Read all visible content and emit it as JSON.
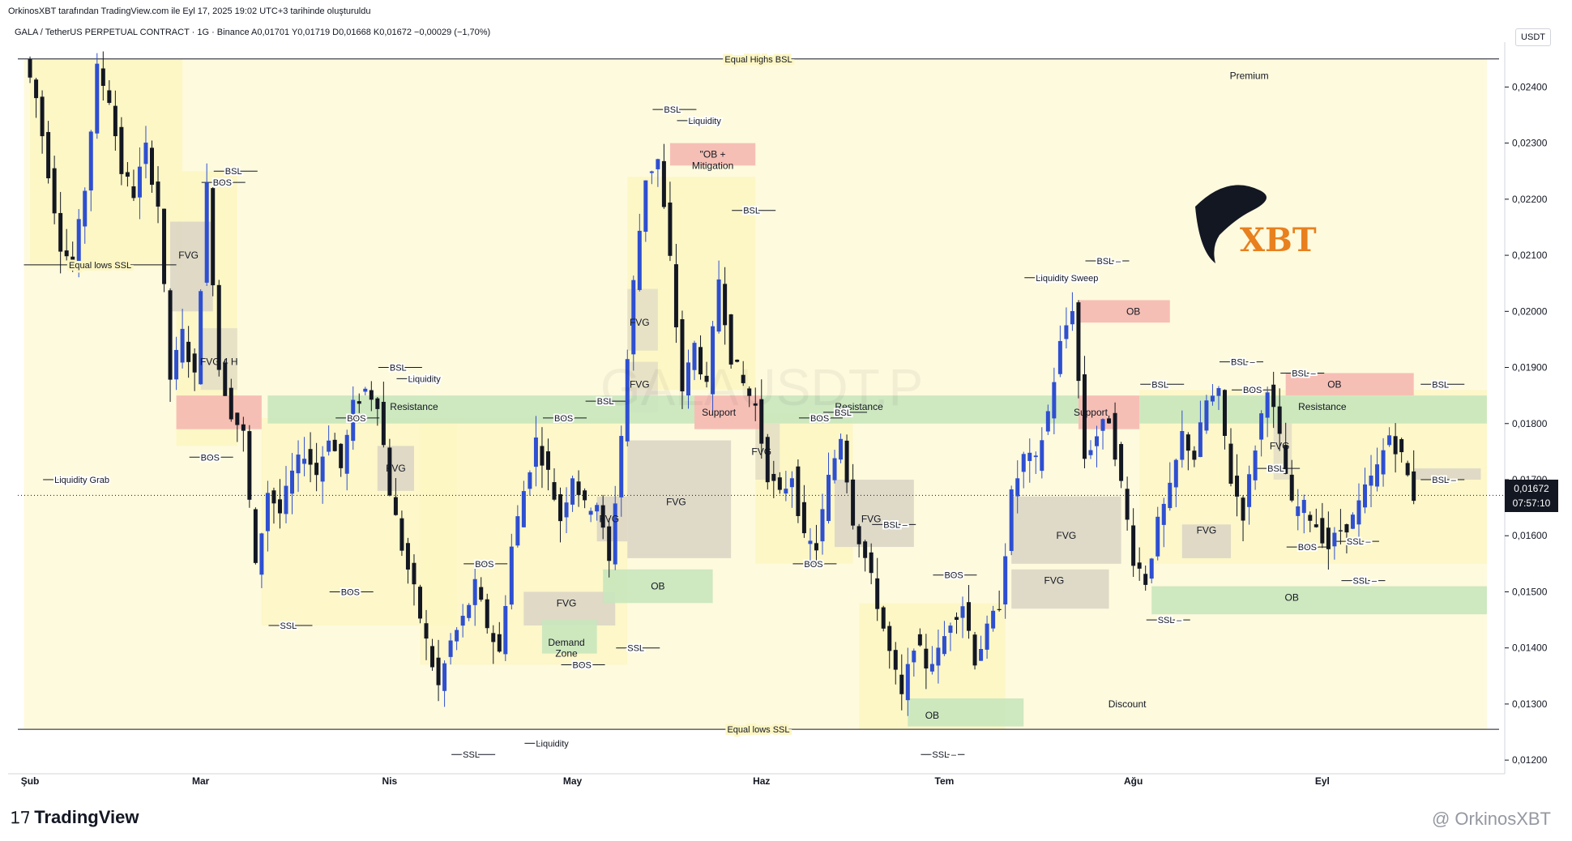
{
  "header": {
    "author_line": "OrkinosXBT tarafından TradingView.com ile Eyl 17, 2025 19:02 UTC+3 tarihinde oluşturuldu",
    "symbol_line": "GALA / TetherUS PERPETUAL CONTRACT · 1G · Binance  A0,01701  Y0,01719  D0,01668  K0,01672  −0,00029 (−1,70%)",
    "currency": "USDT",
    "watermark": "GALAUSDT.P"
  },
  "footer": {
    "brand": "TradingView",
    "author_watermark": "@ OrkinosXBT"
  },
  "logo": {
    "text": "XBT",
    "color": "#e8801e"
  },
  "price_tag": {
    "price": "0,01672",
    "countdown": "07:57:10"
  },
  "colors": {
    "up": "#2e4fd1",
    "down": "#131722",
    "yellow": "#fdf6c3",
    "green": "#c9e6bd",
    "red": "#f5b8b0",
    "gray": "#d9d4c4"
  },
  "chart_data": {
    "type": "candlestick",
    "y_axis": {
      "range": [
        0.0118,
        0.0248
      ],
      "ticks": [
        "0,01200",
        "0,01300",
        "0,01400",
        "0,01500",
        "0,01600",
        "0,01700",
        "0,01800",
        "0,01900",
        "0,02000",
        "0,02100",
        "0,02200",
        "0,02300",
        "0,02400"
      ]
    },
    "x_axis": {
      "range": [
        "2025-01-30",
        "2025-09-30"
      ],
      "labels": [
        {
          "date": "2025-02-01",
          "text": "Şub"
        },
        {
          "date": "2025-03-01",
          "text": "Mar"
        },
        {
          "date": "2025-04-01",
          "text": "Nis"
        },
        {
          "date": "2025-05-01",
          "text": "May"
        },
        {
          "date": "2025-06-01",
          "text": "Haz"
        },
        {
          "date": "2025-07-01",
          "text": "Tem"
        },
        {
          "date": "2025-08-01",
          "text": "Ağu"
        },
        {
          "date": "2025-09-01",
          "text": "Eyl"
        }
      ]
    },
    "current_price": 0.01672,
    "price_path": [
      [
        "2025-02-01",
        0.0245
      ],
      [
        "2025-02-03",
        0.0238
      ],
      [
        "2025-02-05",
        0.0225
      ],
      [
        "2025-02-07",
        0.0212
      ],
      [
        "2025-02-09",
        0.0208
      ],
      [
        "2025-02-11",
        0.0222
      ],
      [
        "2025-02-13",
        0.0243
      ],
      [
        "2025-02-15",
        0.0238
      ],
      [
        "2025-02-17",
        0.0225
      ],
      [
        "2025-02-19",
        0.0221
      ],
      [
        "2025-02-21",
        0.0229
      ],
      [
        "2025-02-23",
        0.0219
      ],
      [
        "2025-02-25",
        0.0188
      ],
      [
        "2025-02-27",
        0.0196
      ],
      [
        "2025-03-01",
        0.0188
      ],
      [
        "2025-03-03",
        0.0222
      ],
      [
        "2025-03-05",
        0.019
      ],
      [
        "2025-03-07",
        0.0182
      ],
      [
        "2025-03-09",
        0.0178
      ],
      [
        "2025-03-11",
        0.0154
      ],
      [
        "2025-03-13",
        0.0168
      ],
      [
        "2025-03-15",
        0.0164
      ],
      [
        "2025-03-17",
        0.0171
      ],
      [
        "2025-03-19",
        0.0175
      ],
      [
        "2025-03-21",
        0.0171
      ],
      [
        "2025-03-23",
        0.0178
      ],
      [
        "2025-03-25",
        0.0172
      ],
      [
        "2025-03-27",
        0.0183
      ],
      [
        "2025-03-29",
        0.0186
      ],
      [
        "2025-03-31",
        0.0184
      ],
      [
        "2025-04-02",
        0.0168
      ],
      [
        "2025-04-04",
        0.0158
      ],
      [
        "2025-04-06",
        0.015
      ],
      [
        "2025-04-08",
        0.0141
      ],
      [
        "2025-04-10",
        0.0133
      ],
      [
        "2025-04-12",
        0.0141
      ],
      [
        "2025-04-14",
        0.0145
      ],
      [
        "2025-04-16",
        0.0151
      ],
      [
        "2025-04-18",
        0.0144
      ],
      [
        "2025-04-20",
        0.0139
      ],
      [
        "2025-04-22",
        0.0158
      ],
      [
        "2025-04-24",
        0.0168
      ],
      [
        "2025-04-26",
        0.0177
      ],
      [
        "2025-04-28",
        0.0171
      ],
      [
        "2025-04-30",
        0.0163
      ],
      [
        "2025-05-02",
        0.0171
      ],
      [
        "2025-05-04",
        0.0165
      ],
      [
        "2025-05-06",
        0.0166
      ],
      [
        "2025-05-08",
        0.0155
      ],
      [
        "2025-05-10",
        0.0178
      ],
      [
        "2025-05-12",
        0.0205
      ],
      [
        "2025-05-14",
        0.0224
      ],
      [
        "2025-05-16",
        0.0227
      ],
      [
        "2025-05-18",
        0.0209
      ],
      [
        "2025-05-20",
        0.0186
      ],
      [
        "2025-05-22",
        0.0194
      ],
      [
        "2025-05-24",
        0.0186
      ],
      [
        "2025-05-26",
        0.0206
      ],
      [
        "2025-05-28",
        0.0192
      ],
      [
        "2025-05-30",
        0.0187
      ],
      [
        "2025-06-01",
        0.0183
      ],
      [
        "2025-06-03",
        0.0171
      ],
      [
        "2025-06-05",
        0.0167
      ],
      [
        "2025-06-07",
        0.0171
      ],
      [
        "2025-06-09",
        0.0159
      ],
      [
        "2025-06-11",
        0.0158
      ],
      [
        "2025-06-13",
        0.017
      ],
      [
        "2025-06-15",
        0.0178
      ],
      [
        "2025-06-17",
        0.0163
      ],
      [
        "2025-06-19",
        0.0156
      ],
      [
        "2025-06-21",
        0.0148
      ],
      [
        "2025-06-23",
        0.0139
      ],
      [
        "2025-06-25",
        0.0131
      ],
      [
        "2025-06-27",
        0.0141
      ],
      [
        "2025-06-29",
        0.0137
      ],
      [
        "2025-07-01",
        0.0139
      ],
      [
        "2025-07-03",
        0.0145
      ],
      [
        "2025-07-05",
        0.0148
      ],
      [
        "2025-07-07",
        0.0138
      ],
      [
        "2025-07-09",
        0.0143
      ],
      [
        "2025-07-11",
        0.0148
      ],
      [
        "2025-07-13",
        0.0167
      ],
      [
        "2025-07-15",
        0.0174
      ],
      [
        "2025-07-17",
        0.0173
      ],
      [
        "2025-07-19",
        0.0182
      ],
      [
        "2025-07-21",
        0.0194
      ],
      [
        "2025-07-23",
        0.0201
      ],
      [
        "2025-07-25",
        0.0174
      ],
      [
        "2025-07-27",
        0.0178
      ],
      [
        "2025-07-29",
        0.0181
      ],
      [
        "2025-07-31",
        0.0169
      ],
      [
        "2025-08-02",
        0.0156
      ],
      [
        "2025-08-04",
        0.0152
      ],
      [
        "2025-08-06",
        0.0162
      ],
      [
        "2025-08-08",
        0.0168
      ],
      [
        "2025-08-10",
        0.0178
      ],
      [
        "2025-08-12",
        0.0174
      ],
      [
        "2025-08-14",
        0.0184
      ],
      [
        "2025-08-16",
        0.0185
      ],
      [
        "2025-08-18",
        0.017
      ],
      [
        "2025-08-20",
        0.0164
      ],
      [
        "2025-08-22",
        0.0176
      ],
      [
        "2025-08-24",
        0.0187
      ],
      [
        "2025-08-26",
        0.0177
      ],
      [
        "2025-08-28",
        0.0165
      ],
      [
        "2025-08-30",
        0.0165
      ],
      [
        "2025-09-01",
        0.0162
      ],
      [
        "2025-09-03",
        0.0158
      ],
      [
        "2025-09-05",
        0.0161
      ],
      [
        "2025-09-07",
        0.0163
      ],
      [
        "2025-09-09",
        0.0168
      ],
      [
        "2025-09-11",
        0.0172
      ],
      [
        "2025-09-13",
        0.0178
      ],
      [
        "2025-09-15",
        0.0174
      ],
      [
        "2025-09-17",
        0.0167
      ]
    ],
    "levels": [
      {
        "text": "Equal Highs BSL",
        "price": 0.0245
      },
      {
        "text": "Equal lows SSL",
        "price": 0.01255
      },
      {
        "text": "Equal lows SSL",
        "price": 0.02083
      }
    ],
    "zones": [
      {
        "text": "Premium",
        "price": 0.0242
      },
      {
        "text": "Discount",
        "price": 0.013
      },
      {
        "text": "Resistance",
        "price": 0.0183
      },
      {
        "text": "Resistance",
        "price": 0.0183
      },
      {
        "text": "Resistance",
        "price": 0.0183
      },
      {
        "text": "Support",
        "price": 0.0182
      },
      {
        "text": "Support",
        "price": 0.0182
      },
      {
        "text": "\"OB +",
        "price": 0.0228
      },
      {
        "text": "Mitigation",
        "price": 0.0226
      },
      {
        "text": "OB",
        "price": 0.02
      },
      {
        "text": "OB",
        "price": 0.0187
      },
      {
        "text": "OB",
        "price": 0.0151
      },
      {
        "text": "OB",
        "price": 0.0149
      },
      {
        "text": "OB",
        "price": 0.0128
      },
      {
        "text": "Demand",
        "price": 0.0141
      },
      {
        "text": "Zone",
        "price": 0.0139
      },
      {
        "text": "FVG",
        "price": 0.021
      },
      {
        "text": "FVG 4 H",
        "price": 0.0191
      },
      {
        "text": "FVG",
        "price": 0.0172
      },
      {
        "text": "FVG",
        "price": 0.0148
      },
      {
        "text": "FVG",
        "price": 0.0163
      },
      {
        "text": "FVG",
        "price": 0.0166
      },
      {
        "text": "FVG",
        "price": 0.0198
      },
      {
        "text": "FVG",
        "price": 0.0187
      },
      {
        "text": "FVG",
        "price": 0.0175
      },
      {
        "text": "FVG",
        "price": 0.0163
      },
      {
        "text": "FVG",
        "price": 0.016
      },
      {
        "text": "FVG",
        "price": 0.0152
      },
      {
        "text": "FVG",
        "price": 0.0161
      },
      {
        "text": "FVG",
        "price": 0.0176
      }
    ],
    "annotations": [
      {
        "text": "BSL",
        "price": 0.0225
      },
      {
        "text": "BOS",
        "price": 0.0223
      },
      {
        "text": "BOS",
        "price": 0.0174
      },
      {
        "text": "Liquidity Grab",
        "price": 0.017
      },
      {
        "text": "BSL",
        "price": 0.019
      },
      {
        "text": "Liquidity",
        "price": 0.0188
      },
      {
        "text": "BOS",
        "price": 0.0181
      },
      {
        "text": "BOS",
        "price": 0.015
      },
      {
        "text": "SSL",
        "price": 0.0144
      },
      {
        "text": "BOS",
        "price": 0.0181
      },
      {
        "text": "BSL",
        "price": 0.0184
      },
      {
        "text": "BOS",
        "price": 0.0155
      },
      {
        "text": "BOS",
        "price": 0.0137
      },
      {
        "text": "SSL",
        "price": 0.014
      },
      {
        "text": "SSL",
        "price": 0.0121
      },
      {
        "text": "Liquidity",
        "price": 0.0123
      },
      {
        "text": "BSL",
        "price": 0.0236
      },
      {
        "text": "Liquidity",
        "price": 0.0234
      },
      {
        "text": "BSL",
        "price": 0.0218
      },
      {
        "text": "BOS",
        "price": 0.0181
      },
      {
        "text": "BSL",
        "price": 0.0182
      },
      {
        "text": "BOS",
        "price": 0.0155
      },
      {
        "text": "BSL –",
        "price": 0.0162
      },
      {
        "text": "BOS",
        "price": 0.0153
      },
      {
        "text": "SSL –",
        "price": 0.0121
      },
      {
        "text": "Liquidity Sweep",
        "price": 0.0206
      },
      {
        "text": "BSL –",
        "price": 0.0209
      },
      {
        "text": "BSL",
        "price": 0.0187
      },
      {
        "text": "BSL –",
        "price": 0.0191
      },
      {
        "text": "BOS",
        "price": 0.0186
      },
      {
        "text": "BSL –",
        "price": 0.0189
      },
      {
        "text": "BSL",
        "price": 0.0187
      },
      {
        "text": "BSL –",
        "price": 0.017
      },
      {
        "text": "BSL",
        "price": 0.0172
      },
      {
        "text": "BOS",
        "price": 0.0158
      },
      {
        "text": "SSL –",
        "price": 0.0159
      },
      {
        "text": "SSL –",
        "price": 0.0152
      },
      {
        "text": "SSL –",
        "price": 0.0145
      }
    ]
  }
}
